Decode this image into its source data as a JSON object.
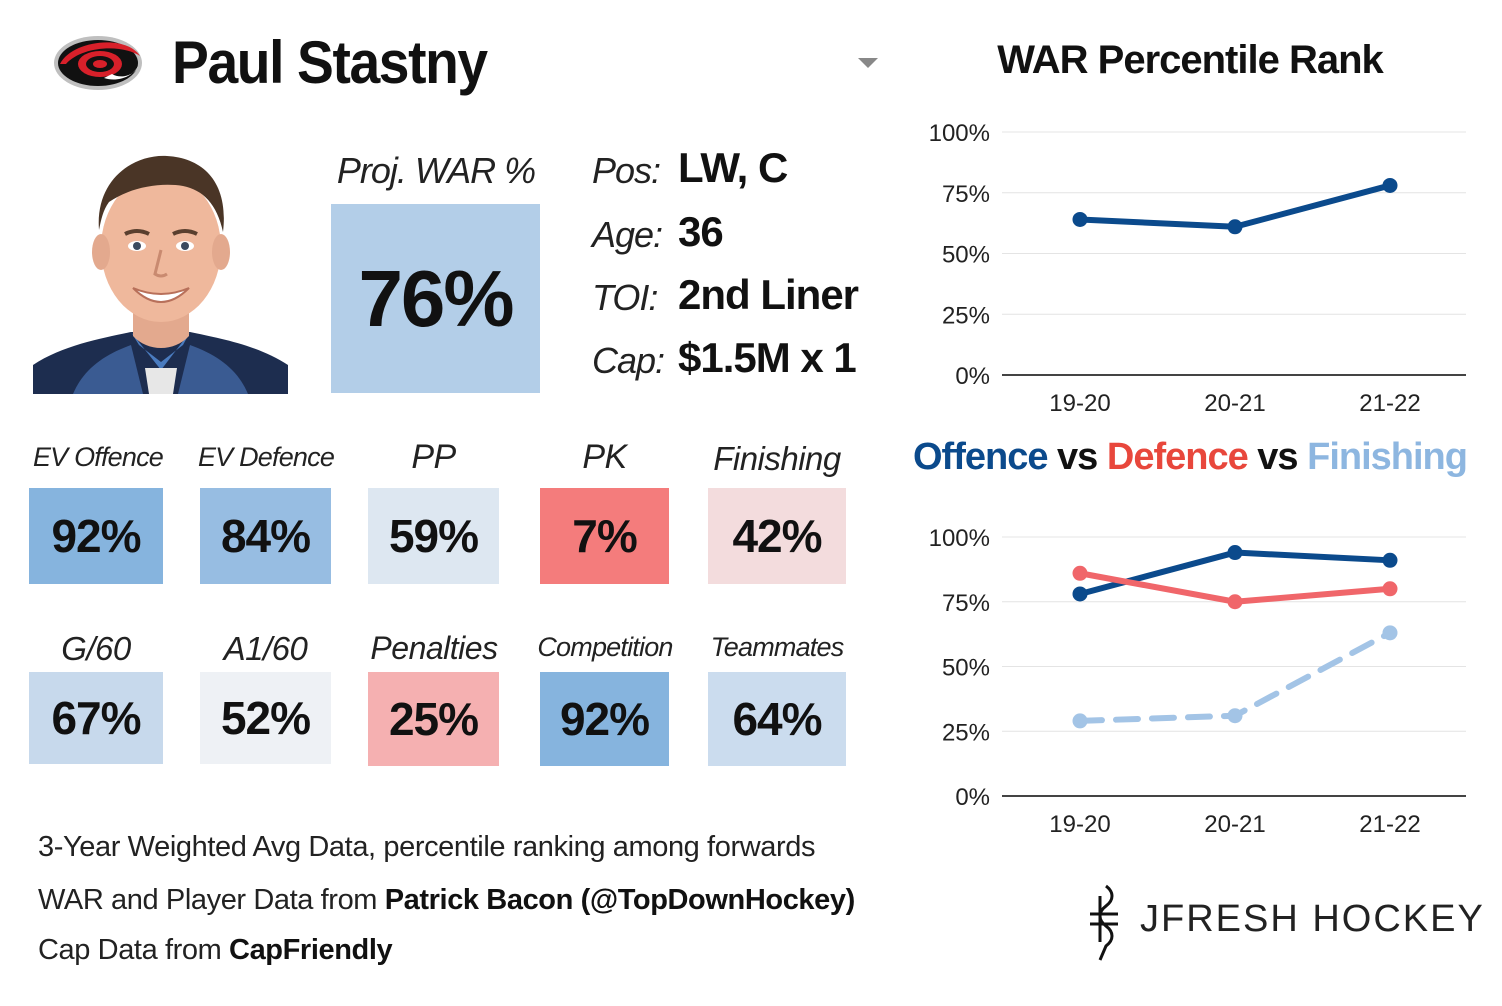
{
  "header": {
    "player_name": "Paul Stastny",
    "team_logo_icon": "hurricanes-logo-icon"
  },
  "photo": {
    "icon": "player-headshot-icon"
  },
  "proj_war": {
    "label": "Proj. WAR %",
    "value": "76%",
    "color": "#b3cee8"
  },
  "info": [
    {
      "label": "Pos:",
      "value": "LW, C"
    },
    {
      "label": "Age:",
      "value": "36"
    },
    {
      "label": "TOI:",
      "value": "2nd Liner"
    },
    {
      "label": "Cap:",
      "value": "$1.5M x 1"
    }
  ],
  "stats_row1": [
    {
      "label": "EV Offence",
      "value": "92%",
      "percentile": 92,
      "color": "#86b4de"
    },
    {
      "label": "EV Defence",
      "value": "84%",
      "percentile": 84,
      "color": "#97bde2"
    },
    {
      "label": "PP",
      "value": "59%",
      "percentile": 59,
      "color": "#dde7f1"
    },
    {
      "label": "PK",
      "value": "7%",
      "percentile": 7,
      "color": "#f47c7c"
    },
    {
      "label": "Finishing",
      "value": "42%",
      "percentile": 42,
      "color": "#f3dcdd"
    }
  ],
  "stats_row2": [
    {
      "label": "G/60",
      "value": "67%",
      "percentile": 67,
      "color": "#c7d9ec"
    },
    {
      "label": "A1/60",
      "value": "52%",
      "percentile": 52,
      "color": "#eef1f5"
    },
    {
      "label": "Penalties",
      "value": "25%",
      "percentile": 25,
      "color": "#f5b0b1"
    },
    {
      "label": "Competition",
      "value": "92%",
      "percentile": 92,
      "color": "#86b4de"
    },
    {
      "label": "Teammates",
      "value": "64%",
      "percentile": 64,
      "color": "#cbdcee"
    }
  ],
  "footer": {
    "line1": "3-Year Weighted Avg Data, percentile ranking among forwards",
    "line2_prefix": "WAR and Player Data from ",
    "line2_bold": "Patrick Bacon (@TopDownHockey)",
    "line3_prefix": "Cap Data from ",
    "line3_bold": "CapFriendly"
  },
  "brand": {
    "name": "JFRESH HOCKEY",
    "icon": "jfresh-logo-icon"
  },
  "chart_titles": {
    "war": "WAR Percentile Rank",
    "ovd_part1": "Offence",
    "ovd_vs1": " vs ",
    "ovd_part2": "Defence",
    "ovd_vs2": " vs ",
    "ovd_part3": "Finishing"
  },
  "chart_data": [
    {
      "type": "line",
      "title": "WAR Percentile Rank",
      "x": [
        "19-20",
        "20-21",
        "21-22"
      ],
      "ylim": [
        0,
        100
      ],
      "yticks": [
        "0%",
        "25%",
        "50%",
        "75%",
        "100%"
      ],
      "yticks_values": [
        0,
        25,
        50,
        75,
        100
      ],
      "grid": true,
      "series": [
        {
          "values": [
            64,
            61,
            78
          ],
          "color": "#0b4a8c",
          "dash": false
        }
      ]
    },
    {
      "type": "line",
      "title": "Offence vs Defence vs Finishing",
      "x": [
        "19-20",
        "20-21",
        "21-22"
      ],
      "ylim": [
        0,
        100
      ],
      "yticks": [
        "0%",
        "25%",
        "50%",
        "75%",
        "100%"
      ],
      "yticks_values": [
        0,
        25,
        50,
        75,
        100
      ],
      "grid": true,
      "series": [
        {
          "name": "Offence",
          "values": [
            78,
            94,
            91
          ],
          "color": "#0b4a8c",
          "dash": false
        },
        {
          "name": "Defence",
          "values": [
            86,
            75,
            80
          ],
          "color": "#f0666a",
          "dash": false
        },
        {
          "name": "Finishing",
          "values": [
            29,
            31,
            63
          ],
          "color": "#a3c4e6",
          "dash": true
        }
      ]
    }
  ]
}
